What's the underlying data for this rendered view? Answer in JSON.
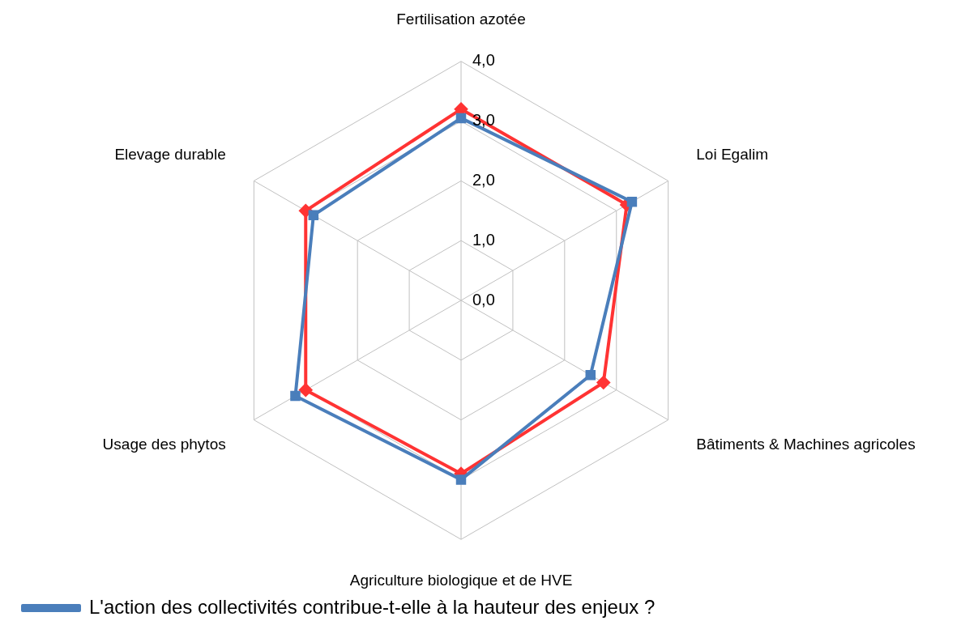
{
  "chart_data": {
    "type": "radar",
    "categories": [
      "Fertilisation azotée",
      "Loi Egalim",
      "Bâtiments & Machines agricoles",
      "Agriculture biologique et de HVE",
      "Usage des phytos",
      "Elevage durable"
    ],
    "series": [
      {
        "name": "L'action des collectivités contribue-t-elle à la hauteur des enjeux ?",
        "color": "#4a7ebb",
        "marker": "square",
        "values": [
          3.05,
          3.3,
          2.5,
          3.0,
          3.2,
          2.85
        ]
      },
      {
        "color": "#ff3333",
        "marker": "diamond",
        "values": [
          3.2,
          3.2,
          2.75,
          2.9,
          3.0,
          3.0
        ]
      }
    ],
    "ylim": [
      0,
      4
    ],
    "yticks": [
      {
        "value": 0,
        "label": "0,0"
      },
      {
        "value": 1,
        "label": "1,0"
      },
      {
        "value": 2,
        "label": "2,0"
      },
      {
        "value": 3,
        "label": "3,0"
      },
      {
        "value": 4,
        "label": "4,0"
      }
    ],
    "grid": true,
    "legend": "bottom left"
  }
}
